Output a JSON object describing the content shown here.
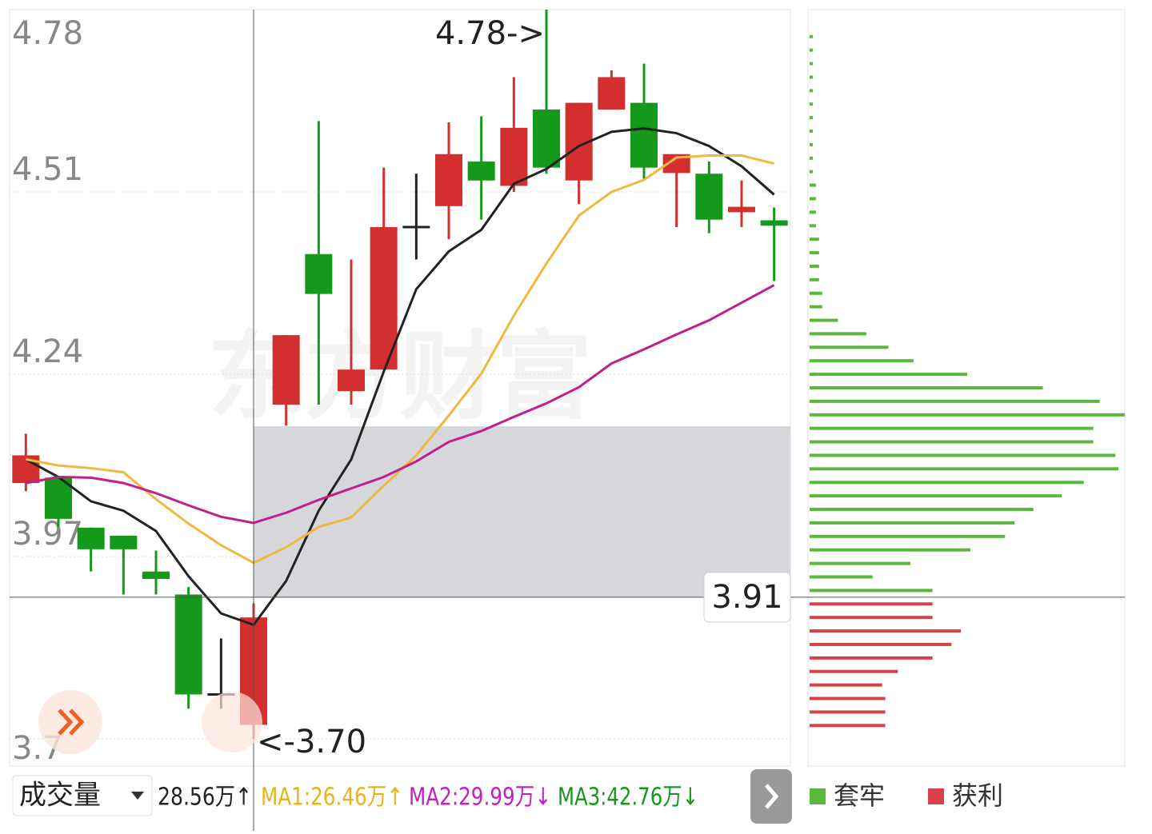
{
  "chart_data": {
    "type": "candlestick",
    "watermark": "东方财富",
    "ylim": [
      3.66,
      4.78
    ],
    "yticks": [
      4.78,
      4.51,
      4.24,
      3.97,
      3.7
    ],
    "grid": true,
    "up_color": "#d42f2f",
    "down_color": "#14991a",
    "flat_color": "#222222",
    "open": [
      4.079,
      4.087,
      4.013,
      4.001,
      3.948,
      3.914,
      3.766,
      3.721,
      4.195,
      4.418,
      4.215,
      4.247,
      4.458,
      4.489,
      4.555,
      4.519,
      4.632,
      4.527,
      4.632,
      4.642,
      4.538,
      4.537,
      4.48,
      4.468
    ],
    "high": [
      4.152,
      4.087,
      4.013,
      4.001,
      3.979,
      3.925,
      3.849,
      3.901,
      4.298,
      4.615,
      4.41,
      4.546,
      4.537,
      4.613,
      4.622,
      4.68,
      4.78,
      4.642,
      4.69,
      4.7,
      4.566,
      4.555,
      4.527,
      4.487
    ],
    "low": [
      4.067,
      4.014,
      3.948,
      3.914,
      3.914,
      3.745,
      3.745,
      3.7,
      4.164,
      4.195,
      4.195,
      4.247,
      4.41,
      4.44,
      4.469,
      4.51,
      4.537,
      4.492,
      4.632,
      4.527,
      4.458,
      4.449,
      4.458,
      4.378
    ],
    "close": [
      4.12,
      4.026,
      3.981,
      3.981,
      3.937,
      3.766,
      3.766,
      3.88,
      4.298,
      4.359,
      4.247,
      4.458,
      4.458,
      4.566,
      4.527,
      4.605,
      4.546,
      4.642,
      4.68,
      4.546,
      4.566,
      4.469,
      4.488,
      4.46
    ],
    "series": [
      {
        "color": "#222222",
        "values": [
          4.114,
          4.088,
          4.052,
          4.038,
          4.008,
          3.941,
          3.886,
          3.869,
          3.934,
          4.038,
          4.114,
          4.244,
          4.366,
          4.422,
          4.454,
          4.522,
          4.544,
          4.578,
          4.599,
          4.604,
          4.597,
          4.578,
          4.548,
          4.506
        ]
      },
      {
        "color": "#f0b840",
        "values": [
          4.114,
          4.105,
          4.101,
          4.095,
          4.055,
          4.019,
          3.987,
          3.961,
          3.984,
          4.014,
          4.028,
          4.075,
          4.12,
          4.179,
          4.241,
          4.327,
          4.404,
          4.475,
          4.51,
          4.528,
          4.561,
          4.564,
          4.564,
          4.552
        ]
      },
      {
        "color": "#c0208a",
        "values": [
          4.079,
          4.088,
          4.087,
          4.079,
          4.064,
          4.046,
          4.029,
          4.02,
          4.035,
          4.054,
          4.071,
          4.088,
          4.111,
          4.14,
          4.156,
          4.177,
          4.197,
          4.221,
          4.256,
          4.277,
          4.299,
          4.32,
          4.346,
          4.372
        ]
      }
    ],
    "max_label": "4.78->",
    "min_label": "<-3.70",
    "crosshair_price": 3.91,
    "highlight": [
      3.91,
      4.163
    ],
    "chip_xlim": [
      0,
      100
    ],
    "chips": [
      {
        "name": "套牢",
        "color": "#5cb83c",
        "prices": [
          4.74,
          4.72,
          4.7,
          4.68,
          4.66,
          4.64,
          4.62,
          4.6,
          4.58,
          4.56,
          4.54,
          4.52,
          4.5,
          4.48,
          4.46,
          4.44,
          4.42,
          4.4,
          4.38,
          4.36,
          4.34,
          4.32,
          4.3,
          4.28,
          4.26,
          4.24,
          4.22,
          4.2,
          4.18,
          4.16,
          4.14,
          4.12,
          4.1,
          4.08,
          4.06,
          4.04,
          4.02,
          4.0,
          3.98,
          3.96,
          3.94,
          3.92
        ],
        "values": [
          1,
          1,
          1,
          1,
          1,
          1,
          1,
          1,
          1,
          1,
          1,
          2,
          2,
          2,
          2,
          3,
          3,
          3,
          3,
          4,
          4,
          9,
          18,
          25,
          33,
          50,
          74,
          92,
          100,
          90,
          90,
          97,
          98,
          87,
          80,
          71,
          65,
          62,
          51,
          32,
          20,
          39
        ]
      },
      {
        "name": "获利",
        "color": "#d9404a",
        "prices": [
          3.9,
          3.88,
          3.86,
          3.84,
          3.82,
          3.8,
          3.78,
          3.76,
          3.74,
          3.72
        ],
        "values": [
          39,
          39,
          48,
          45,
          39,
          28,
          23,
          24,
          24,
          24
        ]
      }
    ],
    "indicator": {
      "selector": "成交量",
      "items": [
        {
          "text": "28.56万↑",
          "color": "#222222"
        },
        {
          "text": "MA1:26.46万↑",
          "color": "#e8b21a"
        },
        {
          "text": "MA2:29.99万↓",
          "color": "#c020c0"
        },
        {
          "text": "MA3:42.76万↓",
          "color": "#14991a"
        }
      ]
    }
  }
}
